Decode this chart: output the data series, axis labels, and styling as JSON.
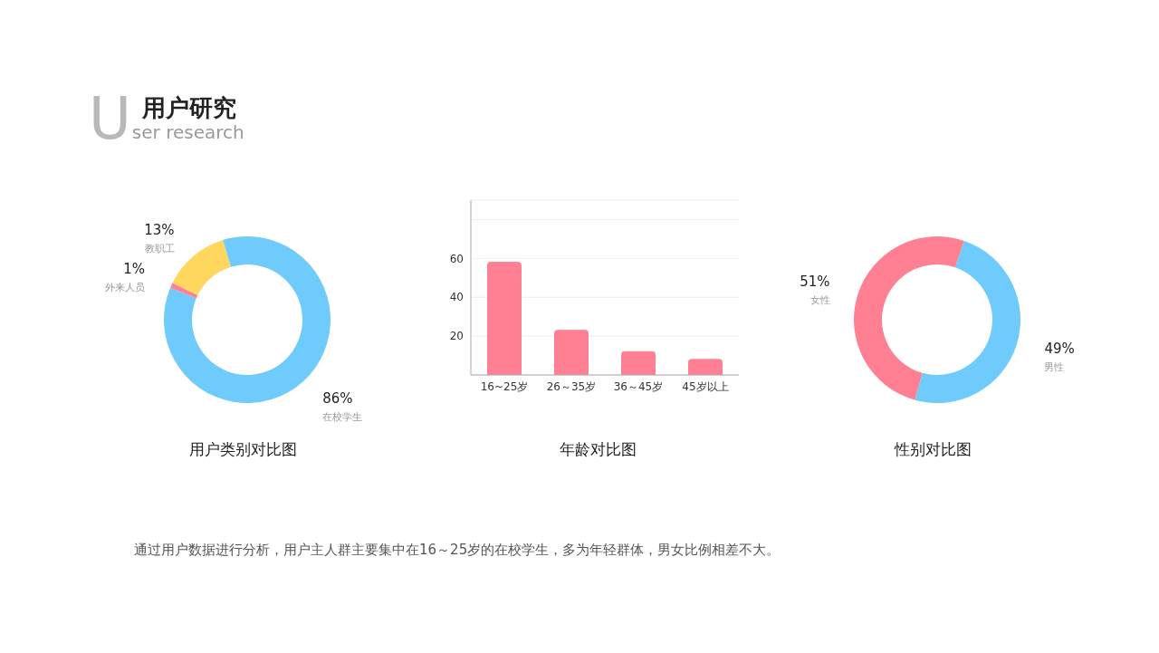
{
  "chart_data": [
    {
      "type": "other",
      "title": "用户研究",
      "subtitle": "User research"
    },
    {
      "type": "donut",
      "title": "用户类别对比图",
      "categories": [
        "教职工",
        "外来人员",
        "在校学生"
      ],
      "values": [
        13,
        1,
        86
      ],
      "colors": [
        "#ffd75e",
        "#ff8093",
        "#6ecbfc"
      ],
      "value_labels": [
        "13%",
        "1%",
        "86%"
      ]
    },
    {
      "type": "bar",
      "title": "年龄对比图",
      "categories": [
        "16~25岁",
        "26～35岁",
        "36～45岁",
        "45岁以上"
      ],
      "values": [
        58,
        23,
        12,
        8
      ],
      "color": "#ff8093",
      "ylim": [
        0,
        90
      ],
      "yticks": [
        {
          "value": 0,
          "label": null
        },
        20,
        40,
        60,
        {
          "value": 80,
          "label": null
        }
      ],
      "grid": "y"
    },
    {
      "type": "donut",
      "title": "性别对比图",
      "categories": [
        "女性",
        "男性"
      ],
      "values": [
        51,
        49
      ],
      "colors": [
        "#ff8093",
        "#6ecbfc"
      ],
      "value_labels": [
        "51%",
        "49%"
      ]
    },
    {
      "type": "other",
      "annotations": [
        "通过用户数据进行分析，用户主人群主要集中在16～25岁的在校学生，多为年轻群体，男女比例相差不大。"
      ]
    }
  ]
}
